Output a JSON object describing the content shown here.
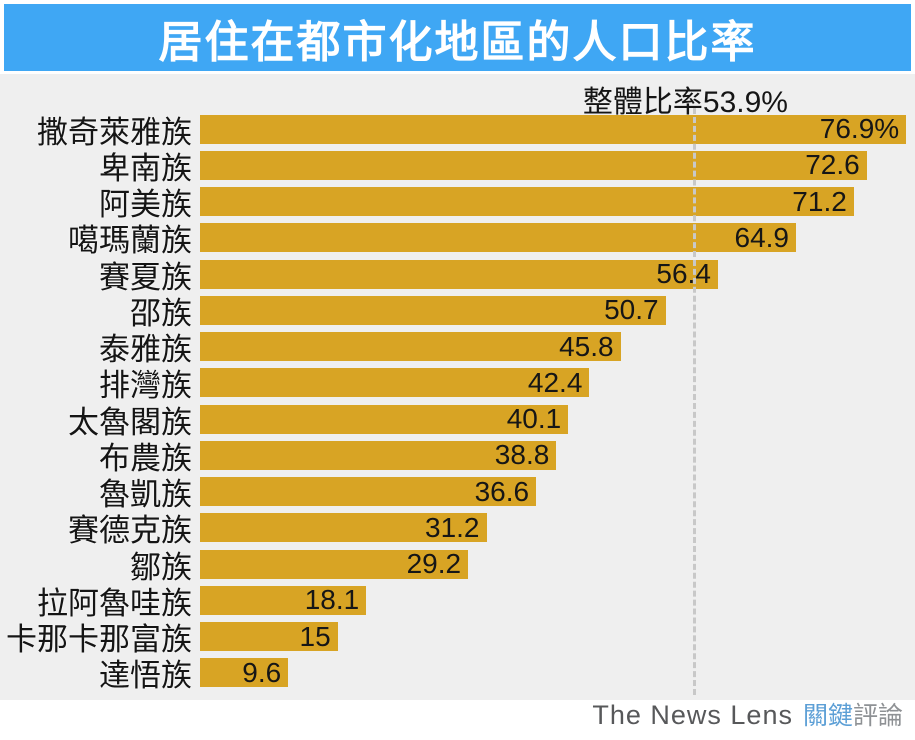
{
  "page": {
    "background": "#FFFFFF"
  },
  "header": {
    "title": "居住在都市化地區的人口比率",
    "background": "#3FA7F4",
    "text_color": "#FFFFFF"
  },
  "reference": {
    "label": "整體比率53.9%",
    "value": 53.9
  },
  "chart_data": {
    "type": "bar",
    "orientation": "horizontal",
    "title": "居住在都市化地區的人口比率",
    "categories": [
      "撒奇萊雅族",
      "卑南族",
      "阿美族",
      "噶瑪蘭族",
      "賽夏族",
      "邵族",
      "泰雅族",
      "排灣族",
      "太魯閣族",
      "布農族",
      "魯凱族",
      "賽德克族",
      "鄒族",
      "拉阿魯哇族",
      "卡那卡那富族",
      "達悟族"
    ],
    "values": [
      76.9,
      72.6,
      71.2,
      64.9,
      56.4,
      50.7,
      45.8,
      42.4,
      40.1,
      38.8,
      36.6,
      31.2,
      29.2,
      18.1,
      15,
      9.6
    ],
    "value_labels": [
      "76.9%",
      "72.6",
      "71.2",
      "64.9",
      "56.4",
      "50.7",
      "45.8",
      "42.4",
      "40.1",
      "38.8",
      "36.6",
      "31.2",
      "29.2",
      "18.1",
      "15",
      "9.6"
    ],
    "unit": "%",
    "xlim": [
      0,
      80
    ],
    "reference_line": {
      "label": "整體比率53.9%",
      "value": 53.9
    },
    "bar_color": "#D8A424",
    "plot_background": "#EFEFEF",
    "legend": "none",
    "grid": "off"
  },
  "footer": {
    "logo_text": "The News Lens",
    "logo_cjk_primary": "關鍵",
    "logo_cjk_secondary": "評論"
  },
  "colors": {
    "banner_blue": "#3FA7F4",
    "bar_gold": "#D8A424",
    "chart_bg": "#EFEFEF",
    "text_dark": "#151515",
    "dashed_line": "#C8C8C8",
    "logo_gray": "#57585A",
    "logo_blue": "#5C9FD6",
    "logo_cjk_gray": "#8E9194"
  }
}
